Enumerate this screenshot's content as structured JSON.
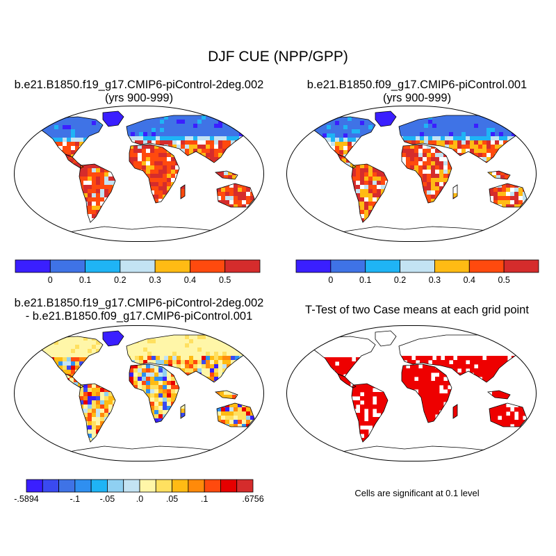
{
  "title": "DJF CUE (NPP/GPP)",
  "panels": [
    {
      "id": "tl",
      "line1": "b.e21.B1850.f19_g17.CMIP6-piControl-2deg.002",
      "line2": "(yrs 900-999)"
    },
    {
      "id": "tr",
      "line1": "b.e21.B1850.f09_g17.CMIP6-piControl.001",
      "line2": "(yrs 900-999)"
    },
    {
      "id": "bl",
      "line1": "b.e21.B1850.f19_g17.CMIP6-piControl-2deg.002",
      "line2": "- b.e21.B1850.f09_g17.CMIP6-piControl.001"
    },
    {
      "id": "br",
      "line1": "T-Test of two Case means at each grid point"
    }
  ],
  "colorbar_top": {
    "colors": [
      "#3a1fff",
      "#3f73e6",
      "#1fb4f5",
      "#c3e3f3",
      "#ffbb14",
      "#ff4a0e",
      "#d52c2c"
    ],
    "labels": [
      "0",
      "0.1",
      "0.2",
      "0.3",
      "0.4",
      "0.5"
    ]
  },
  "colorbar_diff": {
    "colors": [
      "#3a1fff",
      "#3a4af0",
      "#3f73e6",
      "#2f8ff0",
      "#1fb4f5",
      "#8fd0f2",
      "#c3e3f3",
      "#fff6a8",
      "#ffe060",
      "#ffbb14",
      "#ff8a0a",
      "#ff4a0e",
      "#e60000",
      "#d52c2c"
    ],
    "labels": [
      "-.5894",
      "-.1",
      "-.05",
      ".0",
      ".05",
      ".1",
      ".6756"
    ]
  },
  "significance_note": "Cells are significant at 0.1 level",
  "significance_color": "#ee0000"
}
